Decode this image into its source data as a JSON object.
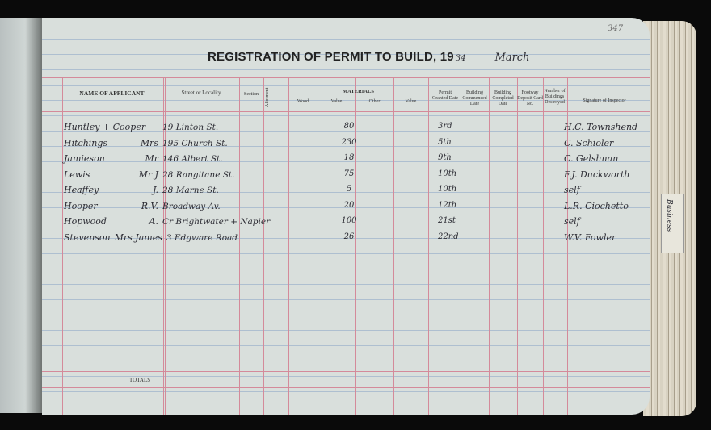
{
  "page_number": "347",
  "title": "REGISTRATION OF PERMIT TO BUILD, 19",
  "year_suffix": "34",
  "month": "March",
  "headers": {
    "name": "NAME OF APPLICANT",
    "street": "Street or Locality",
    "section": "Section",
    "allotment": "Allotment",
    "materials": "MATERIALS",
    "wood": "Wood",
    "value1": "Value",
    "other": "Other",
    "value2": "Value",
    "permit_date": "Permit Granted Date",
    "commenced": "Building Commenced Date",
    "completed": "Building Completed Date",
    "footway": "Footway Deposit Card No.",
    "destroyed": "Number of Buildings Destroyed",
    "signature": "Signature of Inspector"
  },
  "rows": [
    {
      "name": "Huntley + Cooper",
      "initial": "",
      "street": "19 Linton St.",
      "value": "80",
      "date": "3rd",
      "inspector": "H.C. Townshend"
    },
    {
      "name": "Hitchings",
      "initial": "Mrs",
      "street": "195 Church St.",
      "value": "230",
      "date": "5th",
      "inspector": "C. Schioler"
    },
    {
      "name": "Jamieson",
      "initial": "Mr",
      "street": "146 Albert St.",
      "value": "18",
      "date": "9th",
      "inspector": "C. Gelshnan"
    },
    {
      "name": "Lewis",
      "initial": "Mr J",
      "street": "28 Rangitane St.",
      "value": "75",
      "date": "10th",
      "inspector": "F.J. Duckworth"
    },
    {
      "name": "Heaffey",
      "initial": "J.",
      "street": "28 Marne St.",
      "value": "5",
      "date": "10th",
      "inspector": "self"
    },
    {
      "name": "Hooper",
      "initial": "R.V.",
      "street": "Broadway Av.",
      "value": "20",
      "date": "12th",
      "inspector": "L.R. Ciochetto"
    },
    {
      "name": "Hopwood",
      "initial": "A.",
      "street": "Cr Brightwater + Napier",
      "value": "100",
      "date": "21st",
      "inspector": "self"
    },
    {
      "name": "Stevenson",
      "initial": "Mrs James",
      "street": "3 Edgware Road",
      "value": "26",
      "date": "22nd",
      "inspector": "W.V. Fowler"
    }
  ],
  "totals_label": "TOTALS",
  "tab_label": "Business"
}
